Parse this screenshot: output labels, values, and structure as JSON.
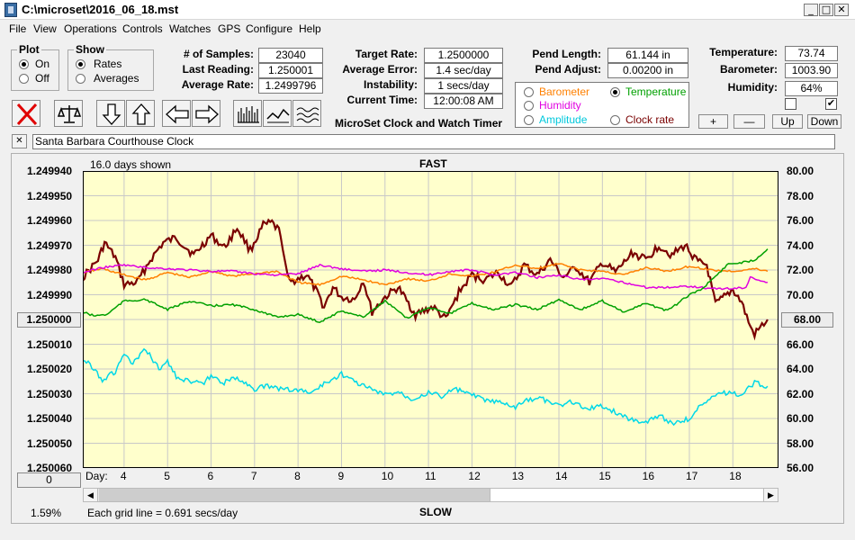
{
  "window": {
    "title": "C:\\microset\\2016_06_18.mst"
  },
  "menu": [
    "File",
    "View",
    "Operations",
    "Controls",
    "Watches",
    "GPS",
    "Configure",
    "Help"
  ],
  "plot_group": {
    "title": "Plot",
    "on": "On",
    "off": "Off",
    "selected": "On"
  },
  "show_group": {
    "title": "Show",
    "rates": "Rates",
    "averages": "Averages",
    "selected": "Rates"
  },
  "stats": {
    "samples_label": "# of Samples:",
    "samples": "23040",
    "last_reading_label": "Last Reading:",
    "last_reading": "1.250001",
    "average_rate_label": "Average Rate:",
    "average_rate": "1.2499796",
    "target_rate_label": "Target Rate:",
    "target_rate": "1.2500000",
    "average_error_label": "Average Error:",
    "average_error": "1.4 sec/day",
    "instability_label": "Instability:",
    "instability": "1 secs/day",
    "current_time_label": "Current Time:",
    "current_time": "12:00:08 AM",
    "pend_length_label": "Pend Length:",
    "pend_length": "61.144 in",
    "pend_adjust_label": "Pend Adjust:",
    "pend_adjust": "0.00200 in",
    "temperature_label": "Temperature:",
    "temperature": "73.74",
    "barometer_label": "Barometer:",
    "barometer": "1003.90",
    "humidity_label": "Humidity:",
    "humidity": "64%"
  },
  "app_caption": "MicroSet Clock and Watch Timer",
  "series_options": {
    "barometer": "Barometer",
    "temperature": "Temperature",
    "humidity": "Humidity",
    "amplitude": "Amplitude",
    "clock_rate": "Clock rate",
    "selected": "Temperature",
    "colors": {
      "barometer": "#ff8000",
      "temperature": "#00a000",
      "humidity": "#e000e0",
      "amplitude": "#00d8e8",
      "clock_rate": "#7a0000"
    }
  },
  "scale_buttons": {
    "plus": "+",
    "minus": "—",
    "up": "Up",
    "down": "Down"
  },
  "checkboxes": {
    "first_checked": false,
    "second_checked": true,
    "second_mark": "✔"
  },
  "clock_name": {
    "close": "✕",
    "value": "Santa Barbara Courthouse Clock"
  },
  "chart_labels": {
    "days_shown": "16.0 days shown",
    "top": "FAST",
    "bottom": "SLOW",
    "day_prefix": "Day:",
    "left_value": "1.250000",
    "right_value": "68.00",
    "scroll_value": "0",
    "percent": "1.59%",
    "grid_note": "Each grid line = 0.691 secs/day"
  },
  "chart_data": {
    "type": "line",
    "x_label": "Day",
    "x_ticks": [
      "4",
      "5",
      "6",
      "7",
      "8",
      "9",
      "10",
      "11",
      "12",
      "13",
      "14",
      "15",
      "16",
      "17",
      "18"
    ],
    "xlim": [
      3.05,
      19.05
    ],
    "y_left_ticks": [
      "1.249940",
      "1.249950",
      "1.249960",
      "1.249970",
      "1.249980",
      "1.249990",
      "1.250000",
      "1.250010",
      "1.250020",
      "1.250030",
      "1.250040",
      "1.250050",
      "1.250060"
    ],
    "y_left_range_inverted": [
      1.24994,
      1.25006
    ],
    "y_right_ticks": [
      "80.00",
      "78.00",
      "76.00",
      "74.00",
      "72.00",
      "70.00",
      "68.00",
      "66.00",
      "64.00",
      "62.00",
      "60.00",
      "58.00",
      "56.00"
    ],
    "y_right_range": [
      56.0,
      80.0
    ],
    "series": [
      {
        "key": "clock_rate",
        "color": "#7a0000",
        "axis": "left",
        "x": [
          3.05,
          3.4,
          3.55,
          3.8,
          4.0,
          4.3,
          4.6,
          4.9,
          5.2,
          5.6,
          6.0,
          6.3,
          6.6,
          6.9,
          7.2,
          7.4,
          7.6,
          7.7,
          7.8,
          8.2,
          8.4,
          8.6,
          8.8,
          9.0,
          9.3,
          9.5,
          9.7,
          10.0,
          10.3,
          10.7,
          11.1,
          11.4,
          11.7,
          12.0,
          12.3,
          12.6,
          12.9,
          13.2,
          13.5,
          13.8,
          14.1,
          14.4,
          14.7,
          15.0,
          15.3,
          15.7,
          16.0,
          16.3,
          16.6,
          16.9,
          17.2,
          17.4,
          17.6,
          17.8,
          18.0,
          18.2,
          18.4,
          18.5,
          18.8
        ],
        "y": [
          1.249983,
          1.249976,
          1.249969,
          1.249975,
          1.249986,
          1.249985,
          1.249976,
          1.249969,
          1.249967,
          1.249974,
          1.249966,
          1.249971,
          1.249963,
          1.249972,
          1.249962,
          1.249961,
          1.249965,
          1.249978,
          1.249985,
          1.249982,
          1.249988,
          1.249995,
          1.249987,
          1.249991,
          1.249992,
          1.249984,
          1.249997,
          1.249991,
          1.249987,
          1.249998,
          1.249995,
          1.25,
          1.249989,
          1.249982,
          1.249984,
          1.249981,
          1.249987,
          1.249978,
          1.249982,
          1.249976,
          1.249983,
          1.249979,
          1.249985,
          1.249977,
          1.249981,
          1.249973,
          1.249976,
          1.24997,
          1.249974,
          1.24997,
          1.249977,
          1.249978,
          1.249994,
          1.249991,
          1.249988,
          1.249993,
          1.250003,
          1.250006,
          1.25
        ]
      },
      {
        "key": "barometer",
        "color": "#ff8000",
        "axis": "right",
        "x": [
          3.05,
          3.5,
          4.0,
          4.5,
          5.0,
          5.5,
          6.0,
          6.5,
          7.0,
          7.5,
          8.0,
          8.5,
          9.0,
          9.5,
          10.0,
          10.5,
          11.0,
          11.5,
          12.0,
          12.5,
          13.0,
          13.5,
          14.0,
          14.5,
          15.0,
          15.5,
          16.0,
          16.5,
          17.0,
          17.5,
          18.0,
          18.5,
          18.8
        ],
        "y": [
          71.8,
          72.1,
          71.6,
          71.2,
          71.8,
          71.4,
          71.9,
          71.5,
          71.7,
          71.9,
          71.0,
          70.8,
          71.5,
          71.2,
          70.8,
          71.3,
          71.1,
          71.7,
          71.5,
          71.8,
          72.4,
          72.1,
          72.5,
          72.0,
          71.9,
          71.6,
          72.2,
          71.9,
          72.3,
          72.0,
          71.9,
          72.1,
          71.9
        ]
      },
      {
        "key": "humidity",
        "color": "#e000e0",
        "axis": "right",
        "x": [
          3.05,
          3.5,
          4.0,
          4.5,
          5.0,
          5.5,
          6.0,
          6.5,
          7.0,
          7.5,
          8.0,
          8.5,
          9.0,
          9.5,
          10.0,
          10.5,
          11.0,
          11.5,
          12.0,
          12.5,
          13.0,
          13.5,
          14.0,
          14.5,
          15.0,
          15.5,
          16.0,
          16.5,
          17.0,
          17.5,
          18.0,
          18.3,
          18.4,
          18.8
        ],
        "y": [
          71.8,
          72.2,
          72.4,
          72.2,
          72.1,
          72.0,
          71.9,
          71.9,
          71.7,
          71.6,
          71.7,
          72.4,
          72.1,
          71.9,
          72.0,
          71.8,
          71.6,
          71.9,
          72.0,
          71.6,
          71.8,
          71.4,
          71.6,
          71.2,
          71.3,
          71.0,
          70.6,
          70.6,
          70.7,
          70.5,
          70.5,
          70.6,
          71.4,
          71.0
        ]
      },
      {
        "key": "temperature",
        "color": "#00a000",
        "axis": "right",
        "x": [
          3.05,
          3.3,
          3.6,
          4.0,
          4.5,
          5.0,
          5.5,
          6.0,
          6.5,
          7.0,
          7.5,
          8.0,
          8.5,
          9.0,
          9.5,
          10.0,
          10.5,
          11.0,
          11.5,
          12.0,
          12.5,
          13.0,
          13.5,
          14.0,
          14.5,
          15.0,
          15.5,
          16.0,
          16.5,
          17.0,
          17.3,
          17.6,
          17.9,
          18.2,
          18.5,
          18.8
        ],
        "y": [
          68.6,
          68.3,
          68.4,
          69.5,
          69.6,
          68.8,
          69.5,
          69.1,
          69.2,
          68.8,
          68.2,
          68.4,
          67.8,
          68.7,
          68.2,
          69.5,
          68.1,
          69.0,
          68.5,
          69.3,
          68.8,
          69.2,
          68.8,
          69.6,
          68.8,
          69.5,
          68.6,
          69.3,
          68.7,
          70.0,
          70.5,
          71.5,
          72.5,
          72.6,
          72.8,
          73.7
        ]
      },
      {
        "key": "amplitude",
        "color": "#00d8e8",
        "axis": "right",
        "x": [
          3.05,
          3.3,
          3.5,
          3.8,
          4.0,
          4.2,
          4.5,
          4.8,
          5.0,
          5.2,
          5.5,
          5.8,
          6.0,
          6.3,
          6.6,
          7.0,
          7.3,
          7.6,
          8.0,
          8.3,
          8.6,
          9.0,
          9.3,
          9.6,
          10.0,
          10.3,
          10.6,
          11.0,
          11.3,
          11.6,
          12.0,
          12.3,
          12.6,
          13.0,
          13.3,
          13.6,
          14.0,
          14.3,
          14.6,
          15.0,
          15.3,
          15.6,
          16.0,
          16.3,
          16.6,
          17.0,
          17.3,
          17.6,
          18.0,
          18.2,
          18.4,
          18.5,
          18.8
        ],
        "y": [
          64.8,
          64.1,
          63.1,
          63.8,
          65.2,
          64.4,
          65.6,
          64.0,
          64.6,
          63.4,
          63.0,
          62.8,
          63.4,
          62.9,
          63.3,
          62.4,
          62.6,
          62.4,
          62.3,
          62.1,
          62.8,
          63.6,
          63.0,
          62.5,
          61.9,
          62.2,
          61.6,
          62.1,
          61.8,
          62.4,
          61.9,
          61.5,
          61.3,
          60.9,
          61.5,
          61.6,
          61.0,
          61.4,
          60.8,
          61.0,
          60.5,
          60.0,
          59.7,
          60.3,
          59.6,
          60.0,
          61.2,
          62.0,
          62.1,
          61.8,
          62.6,
          62.9,
          62.6
        ]
      }
    ]
  }
}
